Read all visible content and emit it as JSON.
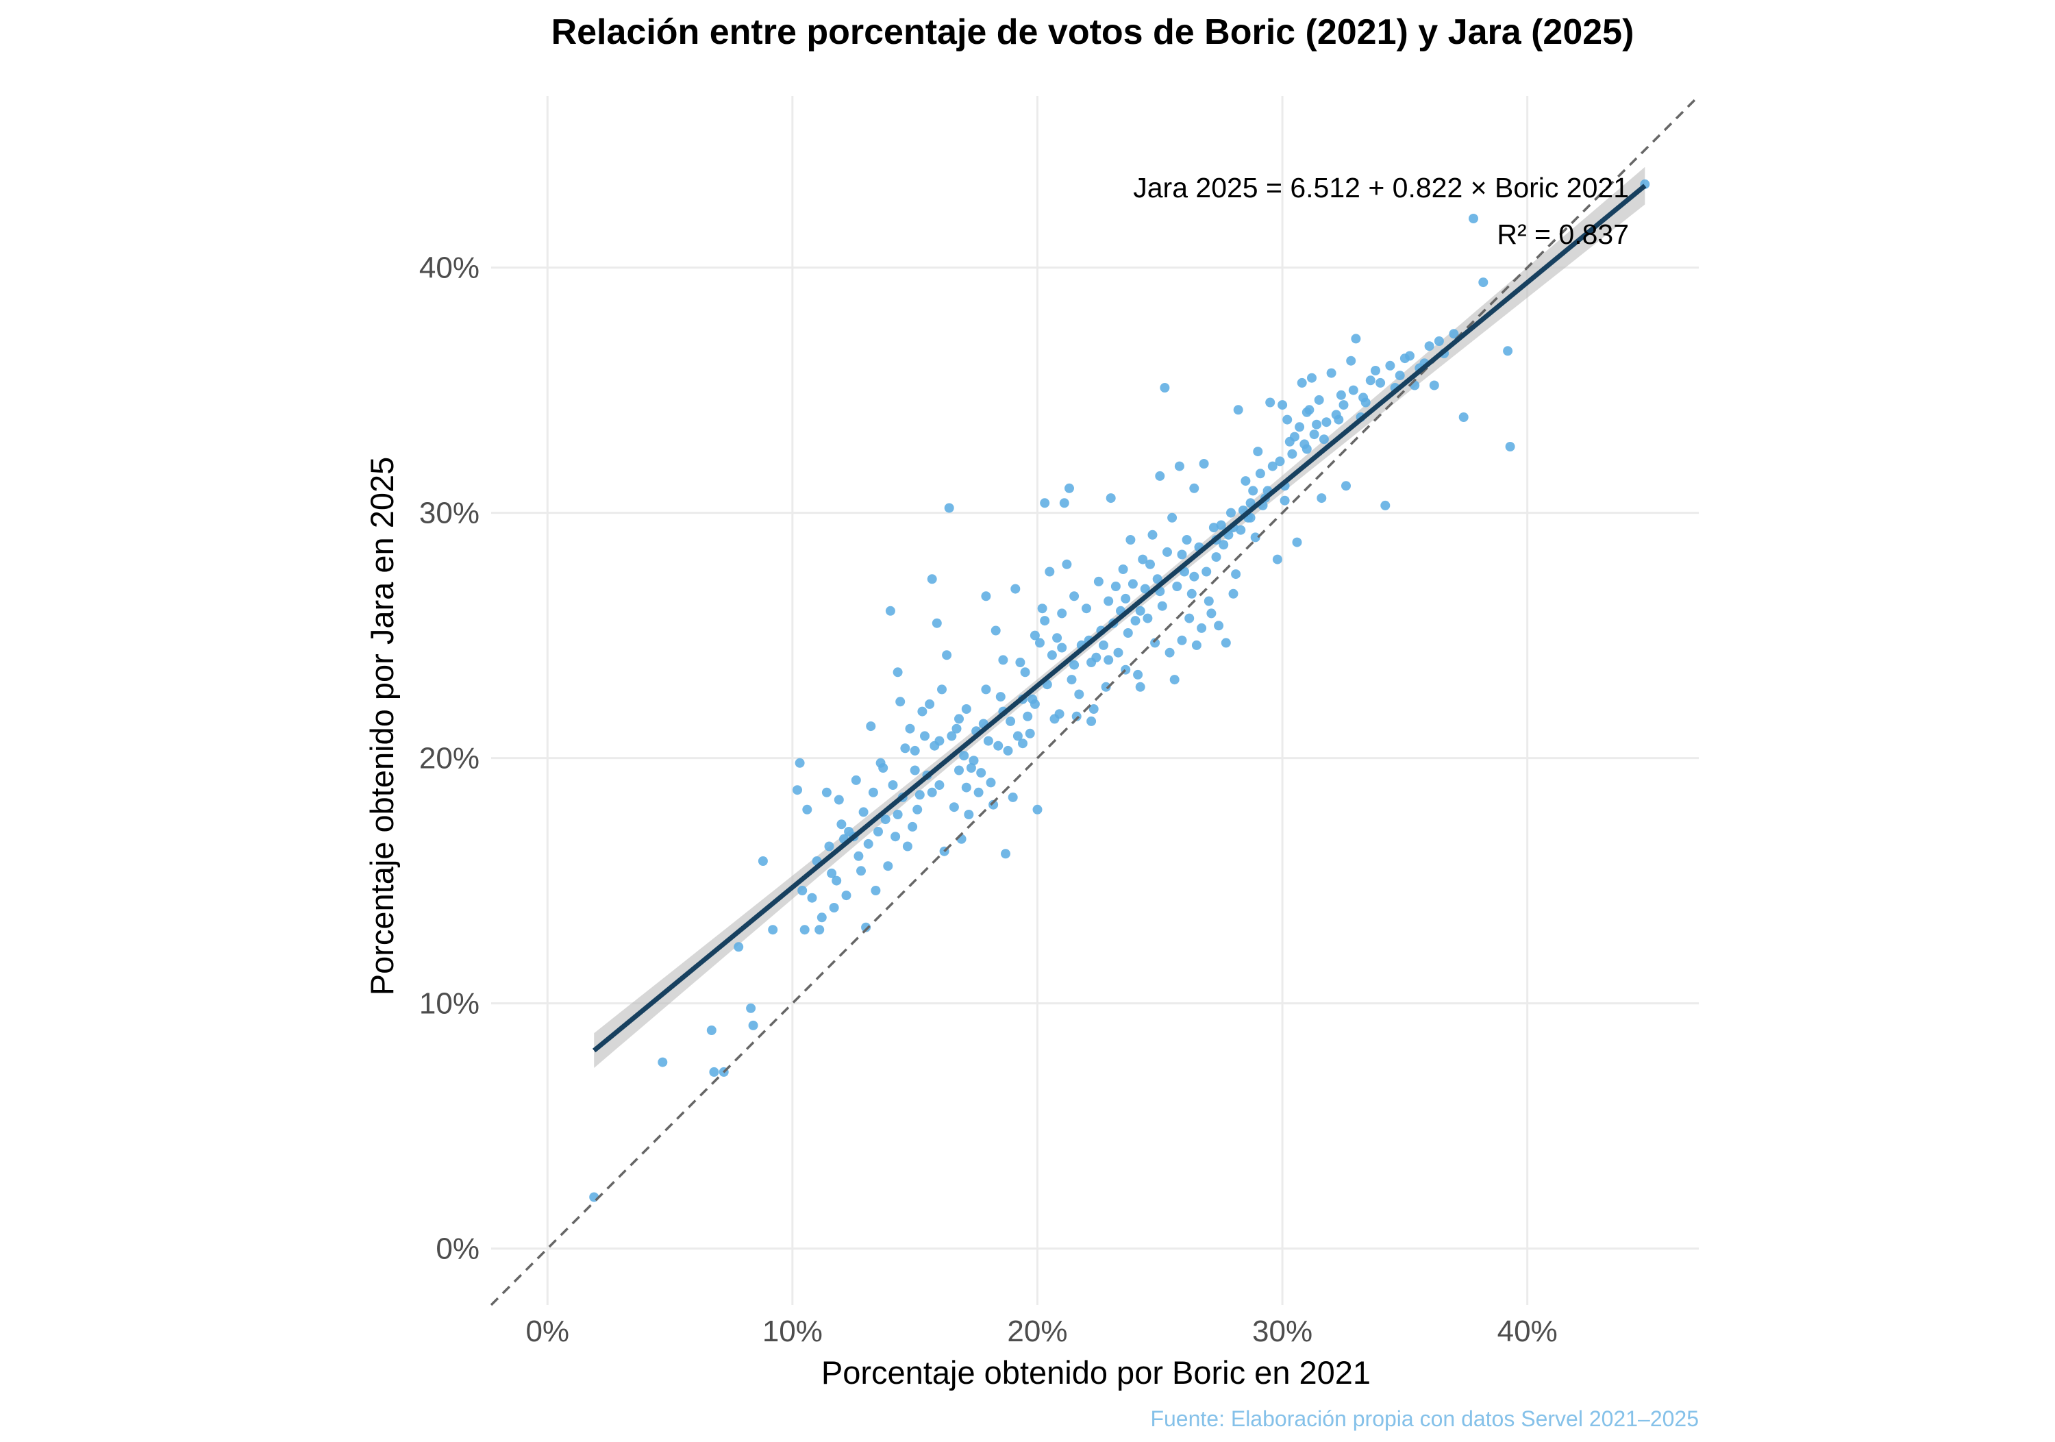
{
  "colors": {
    "point": "#5dade2",
    "regression_line": "#17405f",
    "confidence_band": "#bdbdbd",
    "identity_line": "#666666",
    "grid": "#ebebeb",
    "caption": "#85c1e9"
  },
  "chart_data": {
    "type": "scatter",
    "title": "Relación entre porcentaje de votos de Boric (2021) y Jara (2025)",
    "xlabel": "Porcentaje obtenido por Boric en 2021",
    "ylabel": "Porcentaje obtenido por Jara en 2025",
    "caption": "Fuente: Elaboración propia con datos Servel 2021–2025",
    "xlim": [
      -2.3,
      47
    ],
    "ylim": [
      -2.3,
      47
    ],
    "x_ticks": [
      0,
      10,
      20,
      30,
      40
    ],
    "x_tick_labels": [
      "0%",
      "10%",
      "20%",
      "30%",
      "40%"
    ],
    "y_ticks": [
      0,
      10,
      20,
      30,
      40
    ],
    "y_tick_labels": [
      "0%",
      "10%",
      "20%",
      "30%",
      "40%"
    ],
    "grid": true,
    "legend": "none",
    "regression": {
      "intercept": 6.512,
      "slope": 0.822,
      "r_squared": 0.837,
      "x_range": [
        1.9,
        44.8
      ],
      "equation_label": "Jara 2025 = 6.512 + 0.822 × Boric 2021",
      "r2_label": "R² = 0.837"
    },
    "identity_line": {
      "slope": 1,
      "intercept": 0,
      "style": "dashed"
    },
    "points": [
      [
        1.9,
        2.1
      ],
      [
        4.7,
        7.6
      ],
      [
        6.7,
        8.9
      ],
      [
        6.8,
        7.2
      ],
      [
        7.2,
        7.2
      ],
      [
        7.8,
        12.3
      ],
      [
        8.3,
        9.8
      ],
      [
        8.4,
        9.1
      ],
      [
        8.8,
        15.8
      ],
      [
        9.2,
        13.0
      ],
      [
        10.2,
        18.7
      ],
      [
        10.3,
        19.8
      ],
      [
        10.4,
        14.6
      ],
      [
        10.5,
        13.0
      ],
      [
        10.6,
        17.9
      ],
      [
        10.8,
        14.3
      ],
      [
        11.1,
        13.0
      ],
      [
        11.2,
        13.5
      ],
      [
        11.4,
        18.6
      ],
      [
        11.5,
        16.4
      ],
      [
        11.6,
        15.3
      ],
      [
        11.7,
        13.9
      ],
      [
        11.9,
        18.3
      ],
      [
        12.1,
        16.7
      ],
      [
        12.3,
        17.0
      ],
      [
        12.5,
        16.8
      ],
      [
        12.7,
        16.0
      ],
      [
        12.8,
        15.4
      ],
      [
        12.9,
        17.8
      ],
      [
        13.0,
        13.1
      ],
      [
        13.1,
        16.5
      ],
      [
        13.2,
        21.3
      ],
      [
        13.4,
        14.6
      ],
      [
        13.6,
        19.8
      ],
      [
        13.8,
        17.5
      ],
      [
        14.0,
        26.0
      ],
      [
        14.2,
        16.8
      ],
      [
        14.3,
        23.5
      ],
      [
        14.4,
        22.3
      ],
      [
        14.5,
        18.4
      ],
      [
        14.6,
        20.4
      ],
      [
        14.8,
        21.2
      ],
      [
        15.0,
        19.5
      ],
      [
        15.1,
        17.9
      ],
      [
        15.3,
        21.9
      ],
      [
        15.5,
        19.3
      ],
      [
        15.7,
        27.3
      ],
      [
        15.8,
        20.5
      ],
      [
        15.9,
        25.5
      ],
      [
        16.0,
        18.9
      ],
      [
        16.1,
        22.8
      ],
      [
        16.2,
        16.2
      ],
      [
        16.3,
        24.2
      ],
      [
        16.4,
        30.2
      ],
      [
        16.5,
        20.9
      ],
      [
        16.6,
        18.0
      ],
      [
        16.8,
        19.5
      ],
      [
        16.9,
        16.7
      ],
      [
        17.0,
        20.1
      ],
      [
        17.1,
        22.0
      ],
      [
        17.2,
        17.7
      ],
      [
        17.4,
        19.9
      ],
      [
        17.6,
        18.6
      ],
      [
        17.8,
        21.4
      ],
      [
        17.9,
        26.6
      ],
      [
        18.0,
        20.7
      ],
      [
        18.2,
        18.1
      ],
      [
        18.3,
        25.2
      ],
      [
        18.5,
        22.5
      ],
      [
        18.6,
        24.0
      ],
      [
        18.7,
        16.1
      ],
      [
        18.8,
        20.3
      ],
      [
        19.0,
        18.4
      ],
      [
        19.1,
        26.9
      ],
      [
        19.2,
        20.9
      ],
      [
        19.4,
        22.4
      ],
      [
        19.5,
        23.5
      ],
      [
        19.7,
        21.0
      ],
      [
        19.9,
        25.0
      ],
      [
        20.0,
        17.9
      ],
      [
        20.2,
        26.1
      ],
      [
        20.3,
        30.4
      ],
      [
        20.5,
        27.6
      ],
      [
        20.7,
        21.6
      ],
      [
        20.8,
        24.9
      ],
      [
        21.0,
        25.9
      ],
      [
        21.1,
        30.4
      ],
      [
        21.2,
        27.9
      ],
      [
        21.3,
        31.0
      ],
      [
        21.4,
        23.2
      ],
      [
        21.6,
        21.7
      ],
      [
        21.8,
        24.6
      ],
      [
        22.0,
        26.1
      ],
      [
        22.2,
        21.5
      ],
      [
        22.4,
        24.1
      ],
      [
        22.6,
        25.2
      ],
      [
        22.8,
        22.9
      ],
      [
        23.0,
        30.6
      ],
      [
        23.2,
        27.0
      ],
      [
        23.4,
        26.0
      ],
      [
        23.6,
        23.6
      ],
      [
        23.8,
        28.9
      ],
      [
        24.0,
        25.6
      ],
      [
        24.2,
        22.9
      ],
      [
        24.4,
        26.9
      ],
      [
        24.6,
        27.9
      ],
      [
        24.8,
        24.7
      ],
      [
        25.0,
        31.5
      ],
      [
        25.2,
        35.1
      ],
      [
        25.3,
        28.4
      ],
      [
        25.5,
        29.8
      ],
      [
        25.6,
        23.2
      ],
      [
        25.8,
        31.9
      ],
      [
        26.0,
        27.6
      ],
      [
        26.2,
        25.7
      ],
      [
        26.4,
        31.0
      ],
      [
        26.6,
        28.6
      ],
      [
        26.8,
        32.0
      ],
      [
        27.0,
        26.4
      ],
      [
        27.2,
        29.4
      ],
      [
        27.4,
        25.4
      ],
      [
        27.6,
        28.7
      ],
      [
        27.8,
        29.1
      ],
      [
        28.0,
        26.7
      ],
      [
        28.2,
        34.2
      ],
      [
        28.4,
        30.1
      ],
      [
        28.6,
        29.8
      ],
      [
        28.8,
        30.9
      ],
      [
        29.0,
        32.5
      ],
      [
        29.2,
        30.3
      ],
      [
        29.5,
        34.5
      ],
      [
        29.8,
        28.1
      ],
      [
        30.0,
        34.4
      ],
      [
        30.2,
        33.8
      ],
      [
        30.4,
        32.4
      ],
      [
        30.6,
        28.8
      ],
      [
        30.8,
        35.3
      ],
      [
        31.0,
        34.1
      ],
      [
        31.2,
        35.5
      ],
      [
        31.4,
        33.6
      ],
      [
        31.6,
        30.6
      ],
      [
        32.0,
        35.7
      ],
      [
        32.4,
        34.8
      ],
      [
        32.6,
        31.1
      ],
      [
        32.8,
        36.2
      ],
      [
        33.0,
        37.1
      ],
      [
        33.2,
        33.9
      ],
      [
        33.6,
        35.4
      ],
      [
        34.2,
        30.3
      ],
      [
        34.6,
        35.1
      ],
      [
        35.0,
        36.3
      ],
      [
        35.4,
        35.2
      ],
      [
        35.8,
        36.1
      ],
      [
        36.2,
        35.2
      ],
      [
        36.6,
        36.5
      ],
      [
        37.4,
        33.9
      ],
      [
        37.8,
        42.0
      ],
      [
        38.2,
        39.4
      ],
      [
        39.2,
        36.6
      ],
      [
        39.3,
        32.7
      ],
      [
        44.8,
        43.4
      ],
      [
        11.0,
        15.8
      ],
      [
        11.8,
        15.0
      ],
      [
        12.0,
        17.3
      ],
      [
        12.2,
        14.4
      ],
      [
        12.6,
        19.1
      ],
      [
        13.3,
        18.6
      ],
      [
        13.5,
        17.0
      ],
      [
        13.9,
        15.6
      ],
      [
        14.1,
        18.9
      ],
      [
        14.7,
        16.4
      ],
      [
        14.9,
        17.2
      ],
      [
        15.2,
        18.5
      ],
      [
        15.4,
        20.9
      ],
      [
        15.6,
        22.2
      ],
      [
        16.7,
        21.2
      ],
      [
        17.3,
        19.6
      ],
      [
        17.5,
        21.1
      ],
      [
        17.7,
        19.4
      ],
      [
        18.1,
        19.0
      ],
      [
        18.4,
        20.5
      ],
      [
        18.9,
        21.5
      ],
      [
        19.3,
        23.9
      ],
      [
        19.6,
        21.7
      ],
      [
        19.8,
        22.4
      ],
      [
        20.1,
        24.7
      ],
      [
        20.4,
        23.0
      ],
      [
        20.6,
        24.2
      ],
      [
        20.9,
        21.8
      ],
      [
        21.5,
        23.8
      ],
      [
        21.7,
        22.6
      ],
      [
        22.1,
        24.8
      ],
      [
        22.3,
        22.0
      ],
      [
        22.5,
        27.2
      ],
      [
        22.7,
        24.6
      ],
      [
        22.9,
        26.4
      ],
      [
        23.1,
        25.5
      ],
      [
        23.3,
        24.3
      ],
      [
        23.5,
        27.7
      ],
      [
        23.7,
        25.1
      ],
      [
        23.9,
        27.1
      ],
      [
        24.1,
        23.4
      ],
      [
        24.3,
        28.1
      ],
      [
        24.5,
        25.7
      ],
      [
        24.7,
        29.1
      ],
      [
        24.9,
        27.3
      ],
      [
        25.1,
        26.2
      ],
      [
        25.4,
        24.3
      ],
      [
        25.7,
        27.0
      ],
      [
        25.9,
        24.8
      ],
      [
        26.1,
        28.9
      ],
      [
        26.3,
        26.7
      ],
      [
        26.5,
        24.6
      ],
      [
        26.7,
        25.3
      ],
      [
        26.9,
        27.6
      ],
      [
        27.1,
        25.9
      ],
      [
        27.3,
        28.2
      ],
      [
        27.5,
        29.5
      ],
      [
        27.7,
        24.7
      ],
      [
        27.9,
        30.0
      ],
      [
        28.1,
        27.5
      ],
      [
        28.3,
        29.3
      ],
      [
        28.5,
        31.3
      ],
      [
        28.7,
        30.4
      ],
      [
        28.9,
        29.0
      ],
      [
        29.1,
        31.6
      ],
      [
        29.3,
        30.6
      ],
      [
        29.6,
        31.9
      ],
      [
        29.9,
        32.1
      ],
      [
        30.1,
        31.1
      ],
      [
        30.3,
        32.9
      ],
      [
        30.5,
        33.1
      ],
      [
        30.7,
        33.5
      ],
      [
        30.9,
        32.8
      ],
      [
        31.1,
        34.2
      ],
      [
        31.3,
        33.2
      ],
      [
        31.5,
        34.6
      ],
      [
        31.8,
        33.7
      ],
      [
        32.2,
        34.0
      ],
      [
        32.5,
        34.4
      ],
      [
        32.9,
        35.0
      ],
      [
        33.3,
        34.7
      ],
      [
        33.8,
        35.8
      ],
      [
        34.0,
        35.3
      ],
      [
        34.4,
        36.0
      ],
      [
        34.8,
        35.6
      ],
      [
        35.2,
        36.4
      ],
      [
        35.6,
        35.9
      ],
      [
        36.0,
        36.8
      ],
      [
        36.4,
        37.0
      ],
      [
        37.0,
        37.3
      ],
      [
        13.7,
        19.6
      ],
      [
        14.3,
        17.7
      ],
      [
        15.0,
        20.3
      ],
      [
        15.7,
        18.6
      ],
      [
        16.0,
        20.7
      ],
      [
        16.8,
        21.6
      ],
      [
        17.1,
        18.8
      ],
      [
        17.9,
        22.8
      ],
      [
        18.6,
        21.9
      ],
      [
        19.4,
        20.6
      ],
      [
        19.9,
        22.2
      ],
      [
        20.3,
        25.6
      ],
      [
        21.0,
        24.5
      ],
      [
        21.5,
        26.6
      ],
      [
        22.2,
        23.9
      ],
      [
        22.9,
        24.0
      ],
      [
        23.6,
        26.5
      ],
      [
        24.2,
        26.0
      ],
      [
        25.0,
        26.8
      ],
      [
        25.9,
        28.3
      ],
      [
        26.4,
        27.4
      ],
      [
        27.3,
        28.9
      ],
      [
        28.0,
        29.4
      ],
      [
        28.7,
        29.8
      ],
      [
        29.4,
        30.9
      ],
      [
        30.1,
        30.5
      ],
      [
        31.0,
        32.6
      ],
      [
        31.7,
        33.0
      ],
      [
        32.3,
        33.8
      ],
      [
        33.4,
        34.5
      ]
    ]
  }
}
